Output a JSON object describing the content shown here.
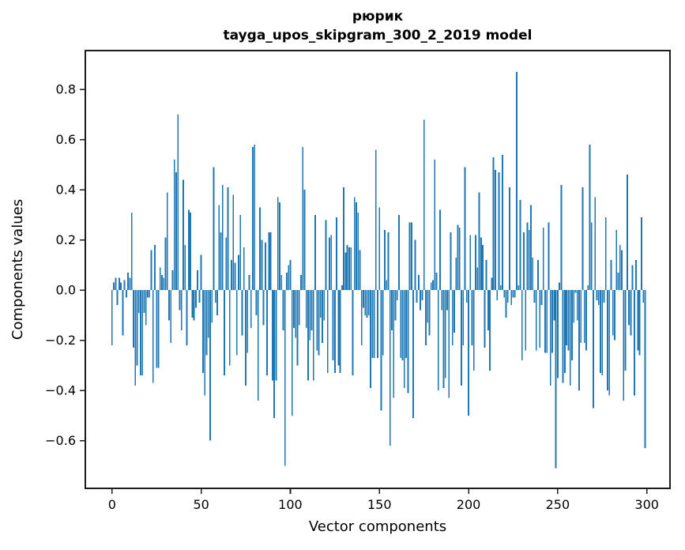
{
  "chart_data": {
    "type": "bar",
    "title_lines": [
      "рюрик",
      "tayga_upos_skipgram_300_2_2019 model"
    ],
    "xlabel": "Vector components",
    "ylabel": "Components values",
    "bar_color": "#1f77b4",
    "axis_color": "#1c1c1c",
    "text_color": "#000000",
    "background_color": "#ffffff",
    "grid": false,
    "x_start": 0,
    "xlim": [
      -15,
      313
    ],
    "ylim": [
      -0.79,
      0.955
    ],
    "x_ticks": [
      0,
      50,
      100,
      150,
      200,
      250,
      300
    ],
    "x_tick_labels": [
      "0",
      "50",
      "100",
      "150",
      "200",
      "250",
      "300"
    ],
    "y_ticks": [
      -0.6,
      -0.4,
      -0.2,
      0.0,
      0.2,
      0.4,
      0.6,
      0.8
    ],
    "y_tick_labels": [
      "−0.6",
      "−0.4",
      "−0.2",
      "0.0",
      "0.2",
      "0.4",
      "0.6",
      "0.8"
    ],
    "values": [
      -0.22,
      0.03,
      0.05,
      -0.06,
      0.05,
      0.03,
      -0.18,
      0.04,
      -0.03,
      0.07,
      0.05,
      0.31,
      -0.23,
      -0.38,
      -0.3,
      -0.09,
      -0.34,
      -0.34,
      -0.09,
      -0.14,
      -0.03,
      -0.03,
      0.16,
      -0.37,
      0.18,
      -0.31,
      -0.31,
      0.09,
      0.06,
      0.05,
      0.21,
      0.39,
      -0.12,
      -0.21,
      0.08,
      0.52,
      0.47,
      0.7,
      -0.08,
      -0.16,
      0.44,
      0.18,
      -0.22,
      0.32,
      0.31,
      -0.11,
      -0.12,
      -0.07,
      0.08,
      -0.05,
      0.14,
      -0.33,
      -0.42,
      -0.26,
      -0.19,
      -0.6,
      -0.13,
      0.49,
      -0.05,
      -0.1,
      0.34,
      0.23,
      0.42,
      -0.34,
      0.21,
      0.41,
      -0.3,
      0.12,
      0.38,
      0.11,
      -0.26,
      0.14,
      0.3,
      -0.18,
      0.17,
      -0.38,
      -0.25,
      0.06,
      -0.15,
      0.57,
      0.58,
      -0.1,
      -0.44,
      0.33,
      0.2,
      -0.14,
      0.19,
      -0.34,
      0.23,
      0.23,
      -0.36,
      -0.51,
      -0.36,
      0.37,
      0.35,
      0.06,
      -0.16,
      -0.7,
      0.07,
      0.1,
      0.12,
      -0.5,
      -0.15,
      -0.19,
      -0.3,
      -0.14,
      0.06,
      0.57,
      0.4,
      -0.15,
      -0.36,
      -0.2,
      -0.16,
      -0.36,
      0.3,
      -0.24,
      -0.26,
      -0.11,
      -0.21,
      -0.12,
      0.28,
      -0.33,
      0.21,
      0.22,
      -0.28,
      -0.33,
      0.29,
      -0.3,
      -0.33,
      0.02,
      0.41,
      0.15,
      0.18,
      0.17,
      0.17,
      -0.34,
      0.37,
      0.35,
      0.31,
      0.16,
      -0.22,
      -0.07,
      -0.1,
      -0.11,
      -0.1,
      -0.39,
      -0.27,
      -0.27,
      0.56,
      -0.27,
      0.33,
      -0.48,
      -0.26,
      0.24,
      0.04,
      0.23,
      -0.62,
      -0.16,
      -0.43,
      -0.12,
      -0.04,
      0.3,
      -0.27,
      -0.28,
      -0.39,
      -0.27,
      -0.41,
      0.27,
      0.27,
      -0.51,
      0.2,
      -0.05,
      0.06,
      -0.08,
      -0.04,
      0.68,
      -0.22,
      -0.13,
      -0.18,
      0.03,
      0.04,
      0.52,
      0.07,
      -0.4,
      0.32,
      -0.08,
      -0.39,
      -0.35,
      -0.08,
      -0.43,
      0.23,
      -0.22,
      -0.17,
      0.13,
      0.26,
      0.25,
      -0.38,
      -0.22,
      0.49,
      -0.05,
      -0.5,
      0.22,
      -0.22,
      -0.32,
      0.22,
      0.09,
      0.39,
      0.21,
      0.18,
      -0.23,
      0.12,
      -0.16,
      -0.32,
      0.05,
      0.53,
      0.48,
      -0.04,
      0.47,
      0.02,
      0.54,
      -0.03,
      -0.11,
      -0.05,
      0.41,
      -0.06,
      -0.03,
      -0.03,
      0.87,
      0.02,
      0.36,
      -0.28,
      0.23,
      -0.24,
      0.27,
      0.24,
      0.34,
      0.13,
      -0.05,
      -0.24,
      0.12,
      -0.23,
      -0.06,
      0.25,
      -0.25,
      -0.25,
      0.27,
      -0.38,
      -0.25,
      -0.12,
      -0.71,
      -0.35,
      0.03,
      0.42,
      -0.37,
      -0.33,
      -0.22,
      -0.24,
      -0.38,
      -0.28,
      -0.13,
      -0.01,
      -0.12,
      -0.4,
      -0.21,
      0.41,
      -0.21,
      -0.24,
      0.02,
      0.58,
      0.27,
      -0.47,
      0.37,
      -0.04,
      -0.06,
      -0.33,
      -0.34,
      -0.05,
      0.29,
      -0.4,
      -0.42,
      0.12,
      -0.18,
      -0.2,
      0.24,
      0.07,
      0.18,
      0.16,
      -0.44,
      -0.32,
      0.46,
      -0.14,
      -0.18,
      0.1,
      -0.42,
      0.12,
      -0.24,
      -0.26,
      0.29,
      -0.05,
      -0.63
    ]
  }
}
